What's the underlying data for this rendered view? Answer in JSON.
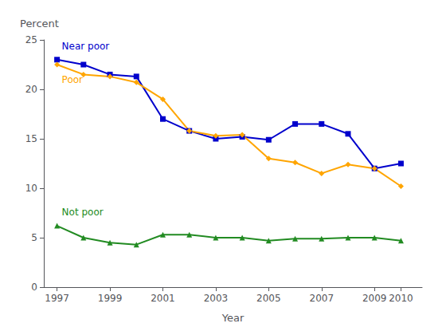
{
  "chart_data": {
    "type": "line",
    "x": [
      1997,
      1998,
      1999,
      2000,
      2001,
      2002,
      2003,
      2004,
      2005,
      2006,
      2007,
      2008,
      2009,
      2010
    ],
    "series": [
      {
        "name": "Near poor",
        "color": "#0000CC",
        "marker": "square",
        "values": [
          23.0,
          22.5,
          21.5,
          21.3,
          17.0,
          15.8,
          15.0,
          15.2,
          14.9,
          16.5,
          16.5,
          15.5,
          12.0,
          12.5
        ]
      },
      {
        "name": "Poor",
        "color": "#FFA500",
        "marker": "diamond",
        "values": [
          22.5,
          21.5,
          21.3,
          20.7,
          19.0,
          15.8,
          15.3,
          15.4,
          13.0,
          12.6,
          11.5,
          12.4,
          12.0,
          10.2
        ]
      },
      {
        "name": "Not poor",
        "color": "#228B22",
        "marker": "triangle",
        "values": [
          6.2,
          5.0,
          4.5,
          4.3,
          5.3,
          5.3,
          5.0,
          5.0,
          4.7,
          4.9,
          4.9,
          5.0,
          5.0,
          4.7
        ]
      }
    ],
    "xlabel": "Year",
    "ylabel": "Percent",
    "xlim": [
      1996.5,
      2010.8
    ],
    "xticks": [
      1997,
      1999,
      2001,
      2003,
      2005,
      2007,
      2009,
      2010
    ],
    "ylim": [
      0,
      25
    ],
    "yticks": [
      0,
      5,
      10,
      15,
      20,
      25
    ],
    "grid": false
  }
}
